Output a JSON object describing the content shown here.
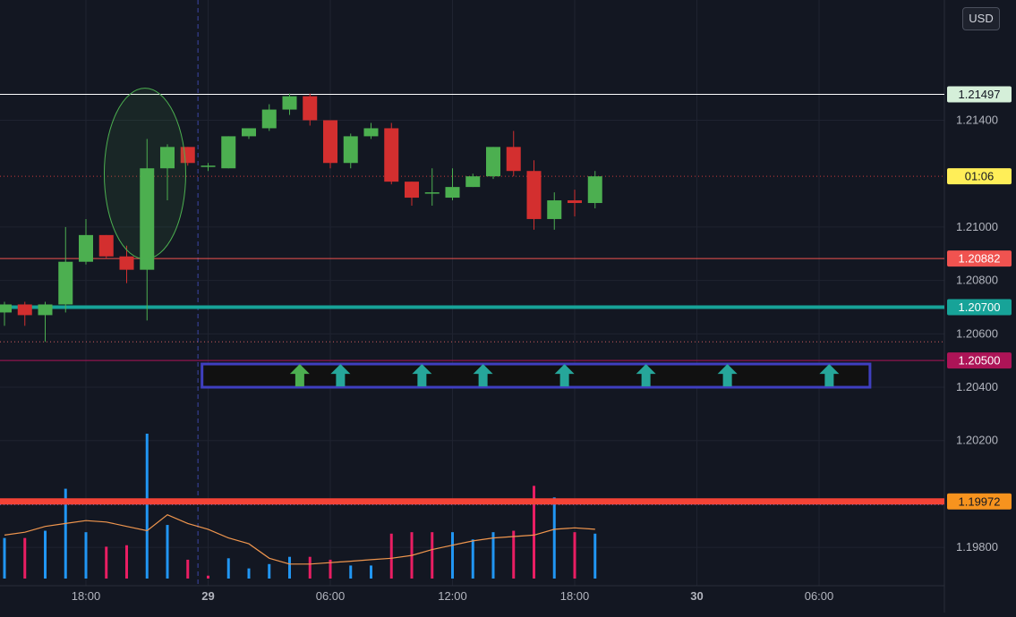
{
  "currency_button": "USD",
  "chart_data": {
    "type": "candlestick",
    "colors": {
      "background": "#131722",
      "up": "#4caf50",
      "down": "#d32f2f",
      "volume_up": "#2196f3",
      "volume_down": "#e91e63",
      "volume_ma": "#f0964e",
      "grid": "#1f2330",
      "axis_text": "#b2b5be",
      "marker": "#26a69a",
      "marker_green": "#4caf50",
      "box": "#3f3fbf",
      "ellipse": "#4caf50"
    },
    "y_axis": {
      "min": 1.197,
      "max": 1.2175,
      "ticks": [
        "1.19800",
        "1.20200",
        "1.20400",
        "1.20600",
        "1.20800",
        "1.21000",
        "1.21400"
      ]
    },
    "x_axis": {
      "ticks": [
        {
          "label": "18:00",
          "bar": 4,
          "bold": false
        },
        {
          "label": "29",
          "bar": 10,
          "bold": true
        },
        {
          "label": "06:00",
          "bar": 16,
          "bold": false
        },
        {
          "label": "12:00",
          "bar": 22,
          "bold": false
        },
        {
          "label": "18:00",
          "bar": 28,
          "bold": false
        },
        {
          "label": "30",
          "bar": 34,
          "bold": true
        },
        {
          "label": "06:00",
          "bar": 40,
          "bold": false
        }
      ],
      "session_divider_bar": 9.5
    },
    "candles": [
      {
        "o": 1.2068,
        "h": 1.2072,
        "l": 1.2063,
        "c": 1.2071
      },
      {
        "o": 1.2071,
        "h": 1.2072,
        "l": 1.2063,
        "c": 1.2067
      },
      {
        "o": 1.2067,
        "h": 1.2072,
        "l": 1.2057,
        "c": 1.2071
      },
      {
        "o": 1.2071,
        "h": 1.21,
        "l": 1.2068,
        "c": 1.2087
      },
      {
        "o": 1.2087,
        "h": 1.2103,
        "l": 1.2086,
        "c": 1.2097
      },
      {
        "o": 1.2097,
        "h": 1.2097,
        "l": 1.2088,
        "c": 1.2089
      },
      {
        "o": 1.2089,
        "h": 1.2093,
        "l": 1.2079,
        "c": 1.2084
      },
      {
        "o": 1.2084,
        "h": 1.2133,
        "l": 1.2065,
        "c": 1.2122
      },
      {
        "o": 1.2122,
        "h": 1.2131,
        "l": 1.211,
        "c": 1.213
      },
      {
        "o": 1.213,
        "h": 1.213,
        "l": 1.2123,
        "c": 1.2124
      },
      {
        "o": 1.2123,
        "h": 1.2124,
        "l": 1.2121,
        "c": 1.2123
      },
      {
        "o": 1.2122,
        "h": 1.2134,
        "l": 1.2122,
        "c": 1.2134
      },
      {
        "o": 1.2134,
        "h": 1.2137,
        "l": 1.2133,
        "c": 1.2137
      },
      {
        "o": 1.2137,
        "h": 1.2146,
        "l": 1.2136,
        "c": 1.2144
      },
      {
        "o": 1.2144,
        "h": 1.215,
        "l": 1.2142,
        "c": 1.2149
      },
      {
        "o": 1.2149,
        "h": 1.215,
        "l": 1.2138,
        "c": 1.214
      },
      {
        "o": 1.214,
        "h": 1.214,
        "l": 1.2122,
        "c": 1.2124
      },
      {
        "o": 1.2124,
        "h": 1.2135,
        "l": 1.2122,
        "c": 1.2134
      },
      {
        "o": 1.2134,
        "h": 1.2139,
        "l": 1.2133,
        "c": 1.2137
      },
      {
        "o": 1.2137,
        "h": 1.2139,
        "l": 1.2116,
        "c": 1.2117
      },
      {
        "o": 1.2117,
        "h": 1.2117,
        "l": 1.2108,
        "c": 1.2111
      },
      {
        "o": 1.2113,
        "h": 1.2122,
        "l": 1.2108,
        "c": 1.2113
      },
      {
        "o": 1.2111,
        "h": 1.2122,
        "l": 1.211,
        "c": 1.2115
      },
      {
        "o": 1.2115,
        "h": 1.212,
        "l": 1.2115,
        "c": 1.2119
      },
      {
        "o": 1.2119,
        "h": 1.213,
        "l": 1.2118,
        "c": 1.213
      },
      {
        "o": 1.213,
        "h": 1.2136,
        "l": 1.2119,
        "c": 1.2121
      },
      {
        "o": 1.2121,
        "h": 1.2125,
        "l": 1.2099,
        "c": 1.2103
      },
      {
        "o": 1.2103,
        "h": 1.2113,
        "l": 1.2099,
        "c": 1.211
      },
      {
        "o": 1.211,
        "h": 1.2114,
        "l": 1.2104,
        "c": 1.2109
      },
      {
        "o": 1.2109,
        "h": 1.2121,
        "l": 1.2107,
        "c": 1.2119
      }
    ],
    "volume": {
      "scale_max": 100,
      "bars": [
        {
          "v": 28,
          "up": true
        },
        {
          "v": 28,
          "up": false
        },
        {
          "v": 33,
          "up": true
        },
        {
          "v": 62,
          "up": true
        },
        {
          "v": 32,
          "up": true
        },
        {
          "v": 22,
          "up": false
        },
        {
          "v": 23,
          "up": false
        },
        {
          "v": 100,
          "up": true
        },
        {
          "v": 37,
          "up": true
        },
        {
          "v": 13,
          "up": false
        },
        {
          "v": 2,
          "up": false
        },
        {
          "v": 14,
          "up": true
        },
        {
          "v": 7,
          "up": true
        },
        {
          "v": 10,
          "up": true
        },
        {
          "v": 15,
          "up": true
        },
        {
          "v": 15,
          "up": false
        },
        {
          "v": 13,
          "up": false
        },
        {
          "v": 9,
          "up": true
        },
        {
          "v": 9,
          "up": true
        },
        {
          "v": 31,
          "up": false
        },
        {
          "v": 32,
          "up": false
        },
        {
          "v": 32,
          "up": false
        },
        {
          "v": 32,
          "up": true
        },
        {
          "v": 27,
          "up": true
        },
        {
          "v": 32,
          "up": true
        },
        {
          "v": 33,
          "up": false
        },
        {
          "v": 64,
          "up": false
        },
        {
          "v": 56,
          "up": true
        },
        {
          "v": 32,
          "up": false
        },
        {
          "v": 31,
          "up": true
        }
      ],
      "ma": [
        30,
        32,
        36,
        38,
        40,
        39,
        36,
        33,
        44,
        38,
        34,
        28,
        24,
        14,
        10,
        10,
        11,
        12,
        13,
        14,
        16,
        20,
        23,
        26,
        28,
        29,
        30,
        34,
        35,
        34
      ]
    },
    "levels": [
      {
        "label": "1.21497",
        "price": 1.21497,
        "color": "#ffffff",
        "tag_bg": "#d5efd9",
        "tag_fg": "#131722",
        "width": 1,
        "style": "solid"
      },
      {
        "label": "01:06",
        "price": 1.2119,
        "color": "#c83a3a",
        "tag_bg": "#ffee58",
        "tag_fg": "#131722",
        "width": 1,
        "style": "dotted"
      },
      {
        "label": "1.20882",
        "price": 1.20882,
        "color": "#f05350",
        "tag_bg": "#f05350",
        "tag_fg": "#ffffff",
        "width": 1,
        "style": "solid"
      },
      {
        "label": "1.20700",
        "price": 1.207,
        "color": "#17a398",
        "tag_bg": "#17a398",
        "tag_fg": "#ffffff",
        "width": 4,
        "style": "solid"
      },
      {
        "label": "1.20500",
        "price": 1.205,
        "color": "#ad1457",
        "tag_bg": "#ad1457",
        "tag_fg": "#ffffff",
        "width": 1,
        "style": "solid"
      },
      {
        "label": "1.19972",
        "price": 1.19972,
        "color": "#f44336",
        "tag_bg": "#f7931e",
        "tag_fg": "#131722",
        "width": 7,
        "style": "solid"
      }
    ],
    "guide_lines": [
      {
        "price": 1.2057,
        "color": "#d05c5c"
      },
      {
        "price": 1.1996,
        "color": "#5b6fd0"
      }
    ],
    "signal_arrows": {
      "price": 1.2044,
      "positions": [
        {
          "bar": 14.5,
          "color": "green"
        },
        {
          "bar": 16.5,
          "color": "teal"
        },
        {
          "bar": 20.5,
          "color": "teal"
        },
        {
          "bar": 23.5,
          "color": "teal"
        },
        {
          "bar": 27.5,
          "color": "teal"
        },
        {
          "bar": 31.5,
          "color": "teal"
        },
        {
          "bar": 35.5,
          "color": "teal"
        },
        {
          "bar": 40.5,
          "color": "teal"
        }
      ]
    },
    "highlight_box": {
      "bar_from": 9.7,
      "bar_to": 42.5,
      "price_top": 1.20487,
      "price_bottom": 1.204
    },
    "highlight_ellipse": {
      "bar_from": 4.9,
      "bar_to": 8.9,
      "price_top": 1.2152,
      "price_bottom": 1.2088
    }
  }
}
